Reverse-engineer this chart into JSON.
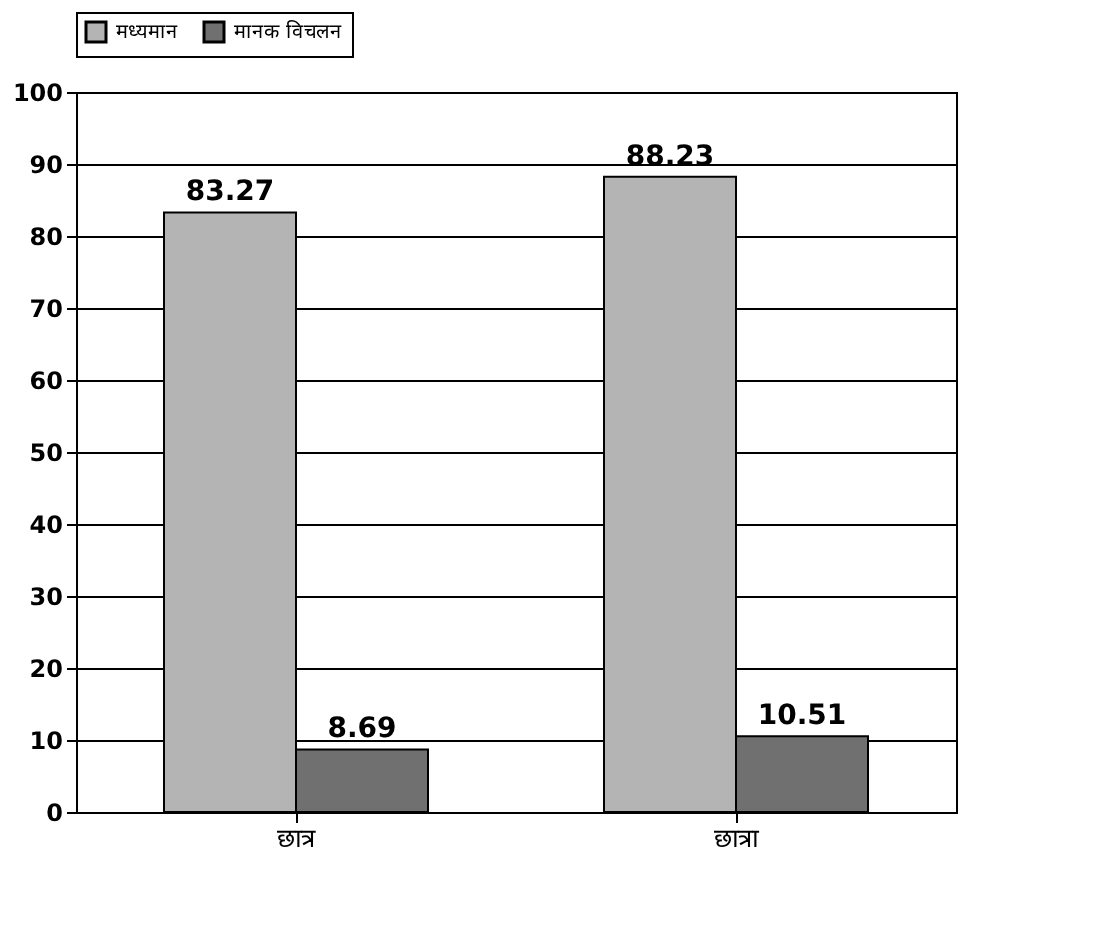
{
  "chart_data": {
    "type": "bar",
    "categories": [
      "छात्र",
      "छात्रा"
    ],
    "series": [
      {
        "name": "मध्यमान",
        "color": "#b4b4b4",
        "values": [
          83.27,
          88.23
        ]
      },
      {
        "name": "मानक विचलन",
        "color": "#707070",
        "values": [
          8.69,
          10.51
        ]
      }
    ],
    "ylim": [
      0,
      100
    ],
    "yticks": [
      0,
      10,
      20,
      30,
      40,
      50,
      60,
      70,
      80,
      90,
      100
    ],
    "grid": "y",
    "legend": "top",
    "data_labels": true
  }
}
